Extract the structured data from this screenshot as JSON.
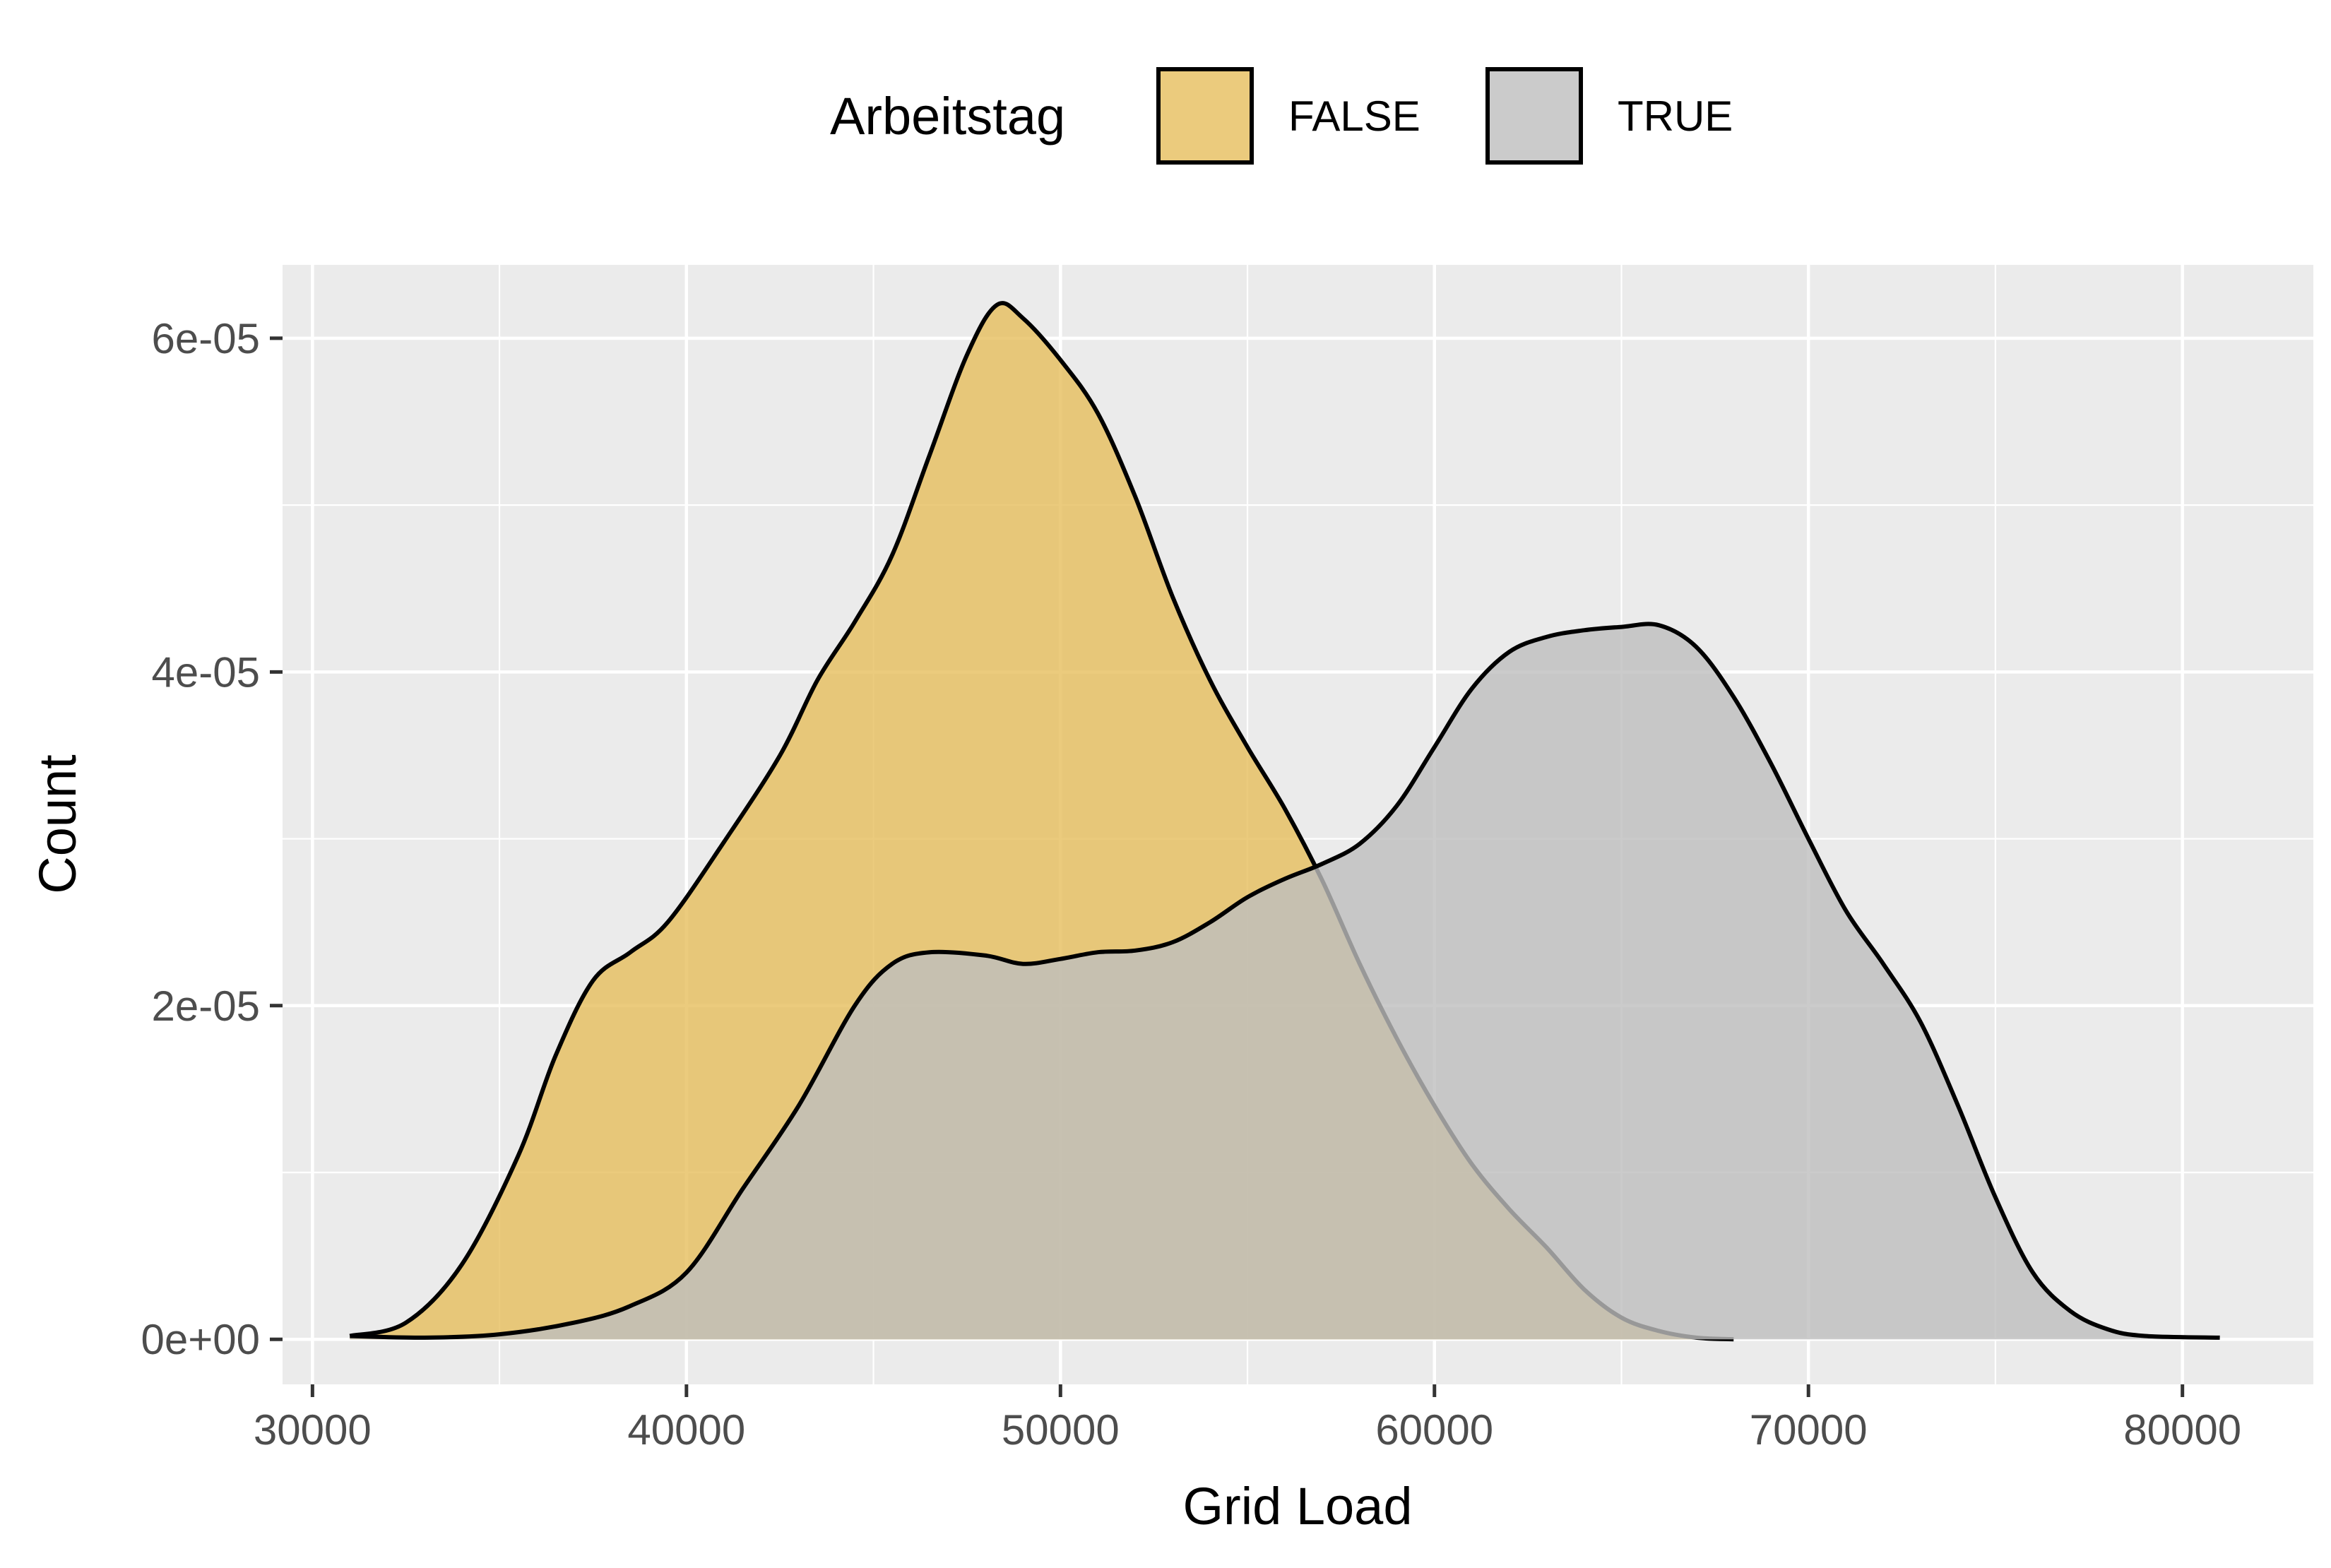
{
  "chart_data": {
    "type": "area",
    "subtype": "density",
    "xlabel": "Grid Load",
    "ylabel": "Count",
    "xlim": [
      29200,
      83500
    ],
    "ylim": [
      -2.7e-06,
      6.44e-05
    ],
    "x_ticks": [
      30000,
      40000,
      50000,
      60000,
      70000,
      80000
    ],
    "x_tick_labels": [
      "30000",
      "40000",
      "50000",
      "60000",
      "70000",
      "80000"
    ],
    "x_minor_ticks": [
      35000,
      45000,
      55000,
      65000,
      75000
    ],
    "y_ticks": [
      0,
      2e-05,
      4e-05,
      6e-05
    ],
    "y_tick_labels": [
      "0e+00",
      "2e-05",
      "4e-05",
      "6e-05"
    ],
    "y_minor_ticks": [
      1e-05,
      3e-05,
      5e-05
    ],
    "grid": true,
    "legend": {
      "title": "Arbeitstag",
      "position": "top",
      "entries": [
        "FALSE",
        "TRUE"
      ]
    },
    "colors": {
      "panel_background": "#EBEBEB",
      "grid": "#FFFFFF",
      "FALSE": "#E6BE5C",
      "TRUE": "#BEBEBE",
      "outline": "#000000"
    },
    "series": [
      {
        "name": "FALSE",
        "points": [
          [
            31000,
            2e-07
          ],
          [
            32500,
            1e-06
          ],
          [
            34000,
            4.5e-06
          ],
          [
            35500,
            1.1e-05
          ],
          [
            36500,
            1.7e-05
          ],
          [
            37500,
            2.15e-05
          ],
          [
            38500,
            2.32e-05
          ],
          [
            39500,
            2.5e-05
          ],
          [
            41000,
            2.98e-05
          ],
          [
            42500,
            3.5e-05
          ],
          [
            43500,
            3.95e-05
          ],
          [
            44500,
            4.3e-05
          ],
          [
            45500,
            4.7e-05
          ],
          [
            46500,
            5.3e-05
          ],
          [
            47500,
            5.9e-05
          ],
          [
            48300,
            6.2e-05
          ],
          [
            49000,
            6.12e-05
          ],
          [
            50000,
            5.87e-05
          ],
          [
            51000,
            5.55e-05
          ],
          [
            52000,
            5.05e-05
          ],
          [
            53000,
            4.45e-05
          ],
          [
            54000,
            3.95e-05
          ],
          [
            55000,
            3.55e-05
          ],
          [
            56000,
            3.18e-05
          ],
          [
            57000,
            2.75e-05
          ],
          [
            58000,
            2.25e-05
          ],
          [
            59000,
            1.8e-05
          ],
          [
            60000,
            1.4e-05
          ],
          [
            61000,
            1.05e-05
          ],
          [
            62000,
            7.8e-06
          ],
          [
            63000,
            5.5e-06
          ],
          [
            64000,
            3e-06
          ],
          [
            65000,
            1.3e-06
          ],
          [
            66000,
            5e-07
          ],
          [
            67000,
            1e-07
          ],
          [
            68000,
            0.0
          ]
        ]
      },
      {
        "name": "TRUE",
        "points": [
          [
            31000,
            2e-07
          ],
          [
            33000,
            1e-07
          ],
          [
            35000,
            3e-07
          ],
          [
            37000,
            1e-06
          ],
          [
            38500,
            2e-06
          ],
          [
            40000,
            4e-06
          ],
          [
            41500,
            9e-06
          ],
          [
            43000,
            1.4e-05
          ],
          [
            44500,
            2e-05
          ],
          [
            45500,
            2.25e-05
          ],
          [
            46500,
            2.32e-05
          ],
          [
            48000,
            2.3e-05
          ],
          [
            49000,
            2.25e-05
          ],
          [
            50000,
            2.28e-05
          ],
          [
            51000,
            2.32e-05
          ],
          [
            52000,
            2.33e-05
          ],
          [
            53000,
            2.38e-05
          ],
          [
            54000,
            2.5e-05
          ],
          [
            55000,
            2.65e-05
          ],
          [
            56000,
            2.76e-05
          ],
          [
            57000,
            2.85e-05
          ],
          [
            58000,
            2.97e-05
          ],
          [
            59000,
            3.2e-05
          ],
          [
            60000,
            3.55e-05
          ],
          [
            61000,
            3.9e-05
          ],
          [
            62000,
            4.12e-05
          ],
          [
            63000,
            4.21e-05
          ],
          [
            64000,
            4.25e-05
          ],
          [
            65000,
            4.27e-05
          ],
          [
            66000,
            4.28e-05
          ],
          [
            67000,
            4.15e-05
          ],
          [
            68000,
            3.85e-05
          ],
          [
            69000,
            3.45e-05
          ],
          [
            70000,
            3e-05
          ],
          [
            71000,
            2.57e-05
          ],
          [
            72000,
            2.25e-05
          ],
          [
            73000,
            1.9e-05
          ],
          [
            74000,
            1.4e-05
          ],
          [
            75000,
            8.5e-06
          ],
          [
            76000,
            4e-06
          ],
          [
            77000,
            1.7e-06
          ],
          [
            78000,
            6e-07
          ],
          [
            79000,
            2e-07
          ],
          [
            81000,
            1e-07
          ]
        ]
      }
    ]
  }
}
